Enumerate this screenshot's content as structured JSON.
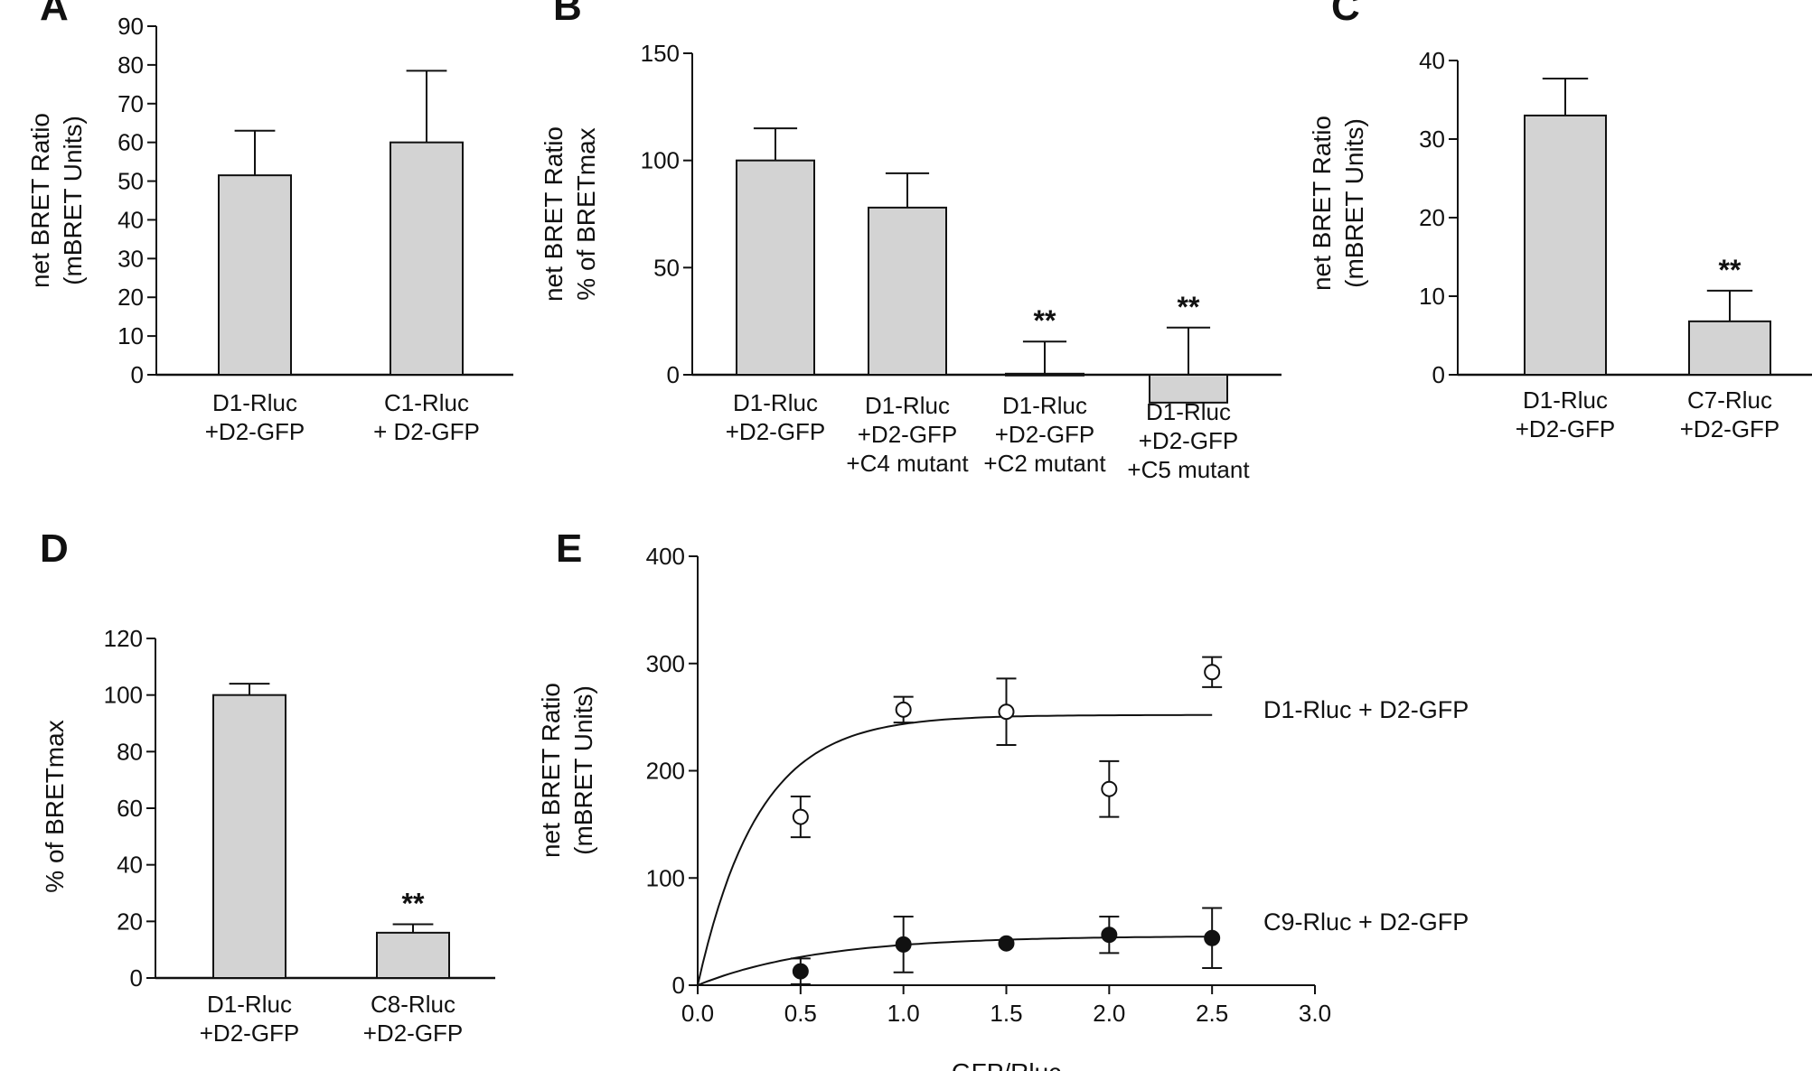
{
  "chart_data": [
    {
      "panel": "A",
      "type": "bar",
      "categories": [
        [
          "D1-Rluc",
          "+D2-GFP"
        ],
        [
          "C1-Rluc",
          "+ D2-GFP"
        ]
      ],
      "values": [
        51.5,
        60
      ],
      "errors": [
        11.5,
        18.5
      ],
      "significance": [
        "",
        ""
      ],
      "ylabel": [
        "net BRET Ratio",
        "(mBRET Units)"
      ],
      "xlabel": "",
      "ylim": [
        0,
        90
      ],
      "yticks": [
        0,
        10,
        20,
        30,
        40,
        50,
        60,
        70,
        80,
        90
      ],
      "bar_color": "#d3d3d3"
    },
    {
      "panel": "B",
      "type": "bar",
      "categories": [
        [
          "D1-Rluc",
          "+D2-GFP"
        ],
        [
          "D1-Rluc",
          "+D2-GFP",
          "+C4 mutant"
        ],
        [
          "D1-Rluc",
          "+D2-GFP",
          "+C2 mutant"
        ],
        [
          "D1-Rluc",
          "+D2-GFP",
          "+C5 mutant"
        ]
      ],
      "values": [
        100,
        78,
        0.5,
        -13
      ],
      "errors": [
        15,
        16,
        15,
        35
      ],
      "significance": [
        "",
        "",
        "**",
        "**"
      ],
      "ylabel": [
        "net BRET Ratio",
        "% of BRETmax"
      ],
      "xlabel": "",
      "ylim": [
        0,
        150
      ],
      "yticks": [
        0,
        50,
        100,
        150
      ],
      "bar_color": "#d3d3d3"
    },
    {
      "panel": "C",
      "type": "bar",
      "categories": [
        [
          "D1-Rluc",
          "+D2-GFP"
        ],
        [
          "C7-Rluc",
          "+D2-GFP"
        ]
      ],
      "values": [
        33,
        6.8
      ],
      "errors": [
        4.7,
        3.9
      ],
      "significance": [
        "",
        "**"
      ],
      "ylabel": [
        "net BRET Ratio",
        "(mBRET Units)"
      ],
      "xlabel": "",
      "ylim": [
        0,
        40
      ],
      "yticks": [
        0,
        10,
        20,
        30,
        40
      ],
      "bar_color": "#d3d3d3"
    },
    {
      "panel": "D",
      "type": "bar",
      "categories": [
        [
          "D1-Rluc",
          "+D2-GFP"
        ],
        [
          "C8-Rluc",
          "+D2-GFP"
        ]
      ],
      "values": [
        100,
        16
      ],
      "errors": [
        4,
        3
      ],
      "significance": [
        "",
        "**"
      ],
      "ylabel": [
        "% of BRETmax"
      ],
      "xlabel": "",
      "ylim": [
        0,
        120
      ],
      "yticks": [
        0,
        20,
        40,
        60,
        80,
        100,
        120
      ],
      "bar_color": "#d3d3d3"
    },
    {
      "panel": "E",
      "type": "scatter",
      "xlabel": "GFP/Rluc",
      "ylabel": [
        "net BRET Ratio",
        "(mBRET Units)"
      ],
      "xlim": [
        0,
        3
      ],
      "ylim": [
        0,
        400
      ],
      "xticks": [
        "0.0",
        "0.5",
        "1.0",
        "1.5",
        "2.0",
        "2.5",
        "3.0"
      ],
      "yticks": [
        0,
        100,
        200,
        300,
        400
      ],
      "series": [
        {
          "name": "D1-Rluc + D2-GFP",
          "marker": "open-circle",
          "x": [
            0.5,
            1.0,
            1.5,
            2.0,
            2.5
          ],
          "y": [
            157,
            257,
            255,
            183,
            292
          ],
          "err": [
            19,
            12,
            31,
            26,
            14
          ],
          "fit": {
            "model": "one-site saturation",
            "bmax": 252,
            "k": 3.4
          }
        },
        {
          "name": "C9-Rluc + D2-GFP",
          "marker": "filled-circle",
          "x": [
            0.5,
            1.0,
            1.5,
            2.0,
            2.5
          ],
          "y": [
            13,
            38,
            39,
            47,
            44
          ],
          "err": [
            12,
            26,
            0,
            17,
            28
          ],
          "fit": {
            "model": "one-site saturation",
            "bmax": 46,
            "k": 1.7
          }
        }
      ]
    }
  ]
}
